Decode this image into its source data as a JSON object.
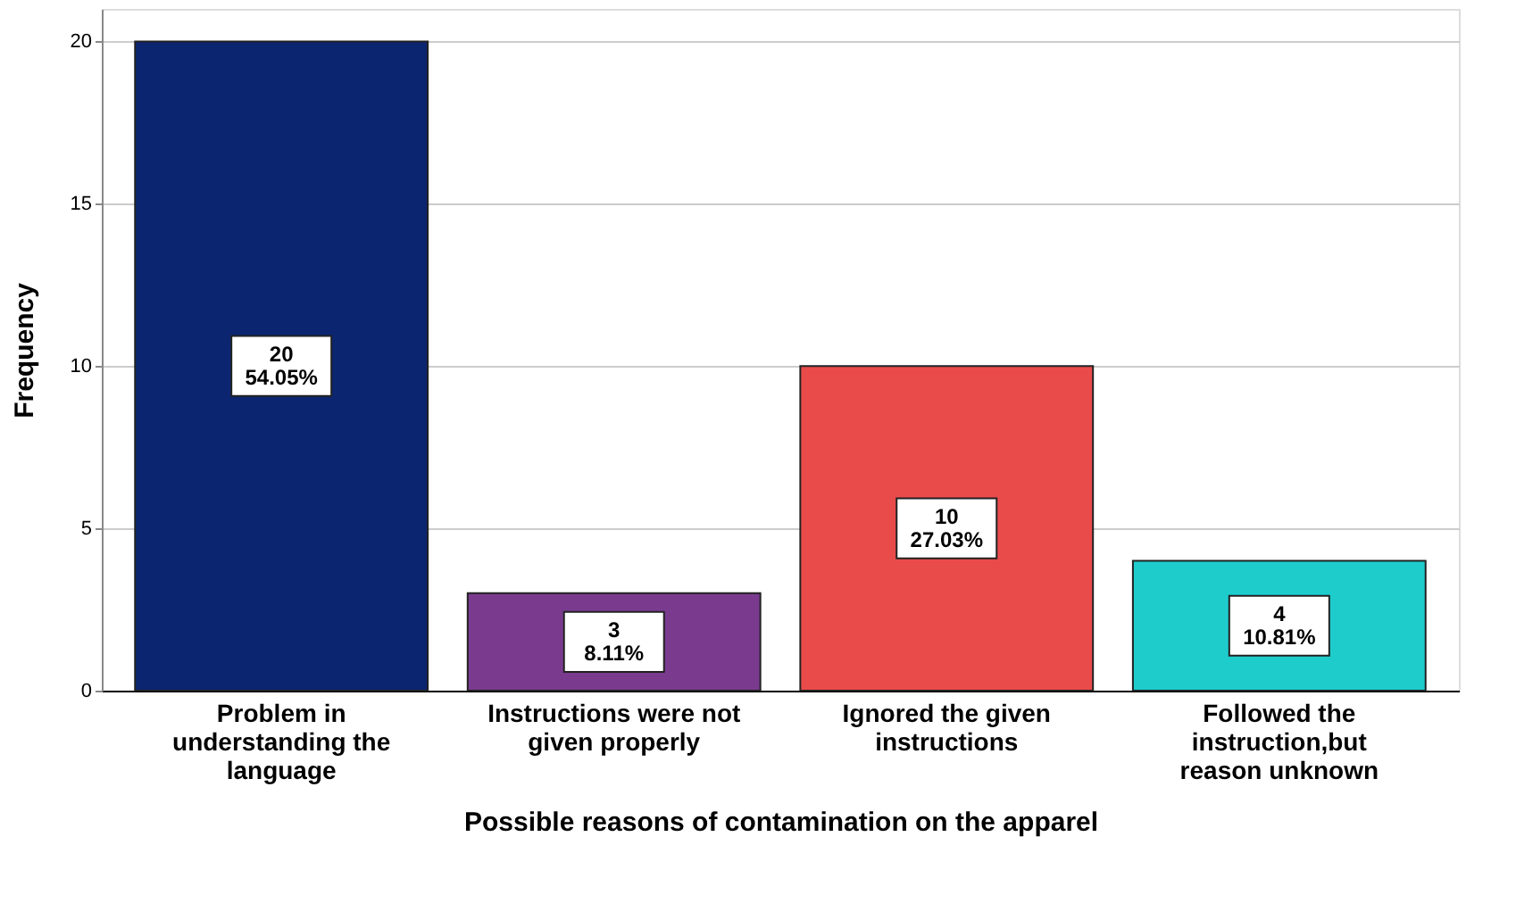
{
  "chart_data": {
    "type": "bar",
    "xlabel": "Possible reasons of contamination on the apparel",
    "ylabel": "Frequency",
    "categories": [
      "Problem in understanding the language",
      "Instructions were not given properly",
      "Ignored the given instructions",
      "Followed the instruction,but reason unknown"
    ],
    "values": [
      20,
      3,
      10,
      4
    ],
    "colors": [
      "#0b2570",
      "#7a3b8f",
      "#e94b4b",
      "#1ecccc"
    ],
    "value_labels": [
      "20 54.05%",
      "3 8.11%",
      "10 27.03%",
      "4 10.81%"
    ],
    "ylim": [
      0,
      21
    ],
    "yticks": [
      0,
      5,
      10,
      15,
      20
    ],
    "grid": "y"
  }
}
